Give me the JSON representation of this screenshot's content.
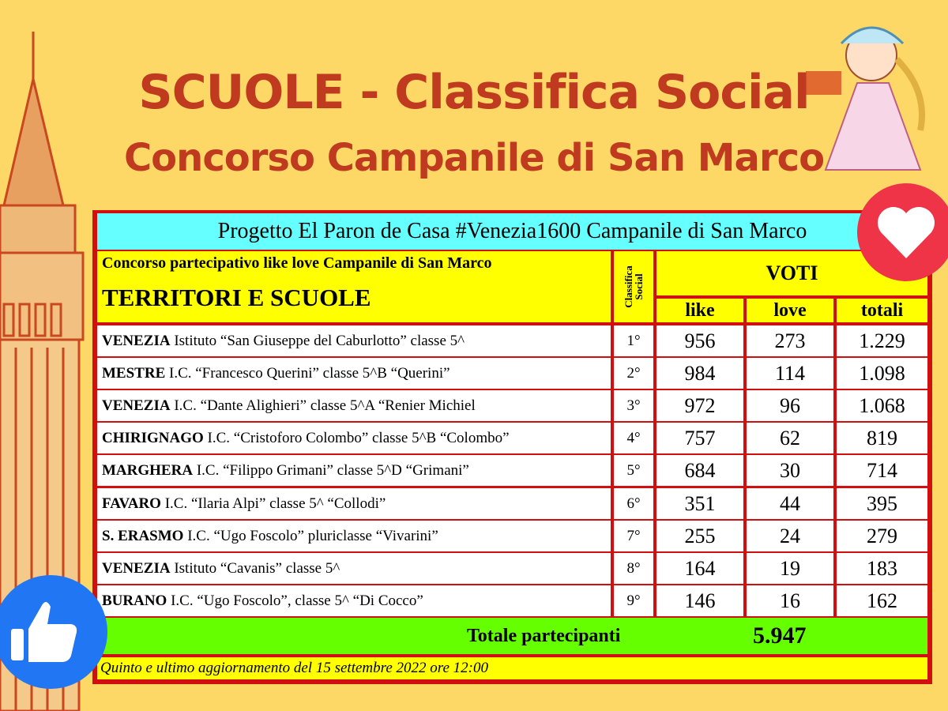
{
  "title": "SCUOLE - Classifica Social",
  "subtitle": "Concorso Campanile di San Marco",
  "colors": {
    "background": "#fdd867",
    "title": "#bf3a1e",
    "border": "#d10f0f",
    "banner": "#66ffff",
    "header": "#ffff00",
    "total": "#66ff00",
    "heart": "#ef3448",
    "like": "#2176f3"
  },
  "icons": {
    "heart": "heart-icon",
    "like": "thumbs-up-icon"
  },
  "table": {
    "banner": "Progetto El Paron de Casa #Venezia1600 Campanile di San Marco",
    "intro": "Concorso partecipativo like love Campanile di San Marco",
    "col_name": "TERRITORI E SCUOLE",
    "col_rank": "Classifica Social",
    "col_votes": "VOTI",
    "col_like": "like",
    "col_love": "love",
    "col_total": "totali",
    "rows": [
      {
        "place": "VENEZIA",
        "school": "Istituto “San Giuseppe del Caburlotto” classe 5^",
        "rank": "1°",
        "like": "956",
        "love": "273",
        "total": "1.229"
      },
      {
        "place": "MESTRE",
        "school": "I.C. “Francesco Querini” classe 5^B “Querini”",
        "rank": "2°",
        "like": "984",
        "love": "114",
        "total": "1.098"
      },
      {
        "place": "VENEZIA",
        "school": "I.C. “Dante Alighieri” classe 5^A “Renier Michiel",
        "rank": "3°",
        "like": "972",
        "love": "96",
        "total": "1.068"
      },
      {
        "place": "CHIRIGNAGO",
        "school": "I.C. “Cristoforo Colombo” classe 5^B “Colombo”",
        "rank": "4°",
        "like": "757",
        "love": "62",
        "total": "819"
      },
      {
        "place": "MARGHERA",
        "school": "I.C. “Filippo Grimani” classe 5^D “Grimani”",
        "rank": "5°",
        "like": "684",
        "love": "30",
        "total": "714"
      },
      {
        "place": "FAVARO",
        "school": "I.C. “Ilaria Alpi” classe 5^ “Collodi”",
        "rank": "6°",
        "like": "351",
        "love": "44",
        "total": "395"
      },
      {
        "place": "S. ERASMO",
        "school": "I.C. “Ugo Foscolo” pluriclasse “Vivarini”",
        "rank": "7°",
        "like": "255",
        "love": "24",
        "total": "279"
      },
      {
        "place": "VENEZIA",
        "school": "Istituto “Cavanis” classe 5^",
        "rank": "8°",
        "like": "164",
        "love": "19",
        "total": "183"
      },
      {
        "place": "BURANO",
        "school": "I.C. “Ugo Foscolo”, classe 5^ “Di Cocco”",
        "rank": "9°",
        "like": "146",
        "love": "16",
        "total": "162"
      }
    ],
    "total_label": "Totale partecipanti",
    "total_value": "5.947",
    "footer": "Quinto e ultimo aggiornamento del 15 settembre 2022 ore 12:00"
  }
}
